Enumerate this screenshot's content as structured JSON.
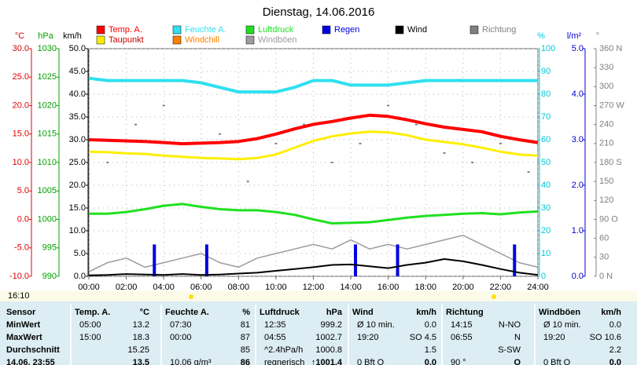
{
  "chart_data": {
    "type": "line",
    "title": "Dienstag, 14.06.2016",
    "axes": [
      {
        "label": "°C",
        "color": "#e00000",
        "lim": [
          -10,
          30
        ],
        "ticks": [
          {
            "value": 30,
            "label": "30.0"
          },
          {
            "value": 25,
            "label": "25.0"
          },
          {
            "value": 20,
            "label": "20.0"
          },
          {
            "value": 15,
            "label": "15.0"
          },
          {
            "value": 10,
            "label": "10.0"
          },
          {
            "value": 5,
            "label": "5.0"
          },
          {
            "value": 0,
            "label": "0.0"
          },
          {
            "value": -5,
            "label": "-5.0"
          },
          {
            "value": -10,
            "label": "-10.0"
          }
        ]
      },
      {
        "label": "hPa",
        "color": "#00a000",
        "lim": [
          990,
          1030
        ],
        "ticks": [
          1030,
          1025,
          1020,
          1015,
          1010,
          1005,
          1000,
          995,
          990
        ]
      },
      {
        "label": "km/h",
        "color": "#000000",
        "lim": [
          0,
          50
        ],
        "ticks": [
          {
            "value": 50,
            "label": "50.0"
          },
          {
            "value": 45,
            "label": "45.0"
          },
          {
            "value": 40,
            "label": "40.0"
          },
          {
            "value": 35,
            "label": "35.0"
          },
          {
            "value": 30,
            "label": "30.0"
          },
          {
            "value": 25,
            "label": "25.0"
          },
          {
            "value": 20,
            "label": "20.0"
          },
          {
            "value": 15,
            "label": "15.0"
          },
          {
            "value": 10,
            "label": "10.0"
          },
          {
            "value": 5,
            "label": "5.0"
          },
          {
            "value": 0,
            "label": "0.0"
          }
        ]
      },
      {
        "label": "%",
        "color": "#00c8d8",
        "lim": [
          0,
          100
        ],
        "ticks": [
          100,
          90,
          80,
          70,
          60,
          50,
          40,
          30,
          20,
          10,
          0
        ]
      },
      {
        "label": "l/m²",
        "color": "#0000d0",
        "lim": [
          0,
          5
        ],
        "ticks": [
          {
            "value": 5,
            "label": "5.0"
          },
          {
            "value": 4,
            "label": "4.0"
          },
          {
            "value": 3,
            "label": "3.0"
          },
          {
            "value": 2,
            "label": "2.0"
          },
          {
            "value": 1,
            "label": "1.0"
          },
          {
            "value": 0,
            "label": "0.0"
          }
        ]
      },
      {
        "label": "°",
        "color": "#808080",
        "lim": [
          0,
          360
        ],
        "ticks": [
          {
            "value": 360,
            "label": "360 N"
          },
          330,
          300,
          {
            "value": 270,
            "label": "270 W"
          },
          240,
          210,
          {
            "value": 180,
            "label": "180 S"
          },
          150,
          120,
          {
            "value": 90,
            "label": "90 O"
          },
          60,
          30,
          {
            "value": 0,
            "label": "0 N"
          }
        ]
      }
    ],
    "xlim": [
      0,
      24
    ],
    "xticks": [
      {
        "value": 0,
        "label": "00:00"
      },
      {
        "value": 2,
        "label": "02:00"
      },
      {
        "value": 4,
        "label": "04:00"
      },
      {
        "value": 6,
        "label": "06:00"
      },
      {
        "value": 8,
        "label": "08:00"
      },
      {
        "value": 10,
        "label": "10:00"
      },
      {
        "value": 12,
        "label": "12:00"
      },
      {
        "value": 14,
        "label": "14:00"
      },
      {
        "value": 16,
        "label": "16:00"
      },
      {
        "value": 18,
        "label": "18:00"
      },
      {
        "value": 20,
        "label": "20:00"
      },
      {
        "value": 22,
        "label": "22:00"
      },
      {
        "value": 24,
        "label": "24:00"
      }
    ],
    "x": [
      0,
      1,
      2,
      3,
      4,
      5,
      6,
      7,
      8,
      9,
      10,
      11,
      12,
      13,
      14,
      15,
      16,
      17,
      18,
      19,
      20,
      21,
      22,
      23,
      24
    ],
    "series": [
      {
        "name": "Temp. A.",
        "color": "#ff0000",
        "axis": 0,
        "kind": "line",
        "width": 4,
        "values": [
          14.0,
          13.9,
          13.8,
          13.7,
          13.5,
          13.3,
          13.4,
          13.5,
          13.7,
          14.2,
          15.0,
          15.9,
          16.7,
          17.2,
          17.8,
          18.3,
          18.1,
          17.5,
          16.8,
          16.2,
          15.8,
          15.4,
          14.6,
          14.0,
          13.5
        ]
      },
      {
        "name": "Feuchte A.",
        "color": "#30e0f0",
        "axis": 3,
        "kind": "line",
        "width": 4,
        "values": [
          87,
          86,
          86,
          86,
          86,
          86,
          85,
          83,
          81,
          81,
          81,
          83,
          86,
          86,
          84,
          84,
          84,
          85,
          86,
          86,
          86,
          86,
          86,
          86,
          86
        ]
      },
      {
        "name": "Luftdruck",
        "color": "#20e020",
        "axis": 1,
        "kind": "line",
        "width": 3,
        "values": [
          1001.0,
          1001.0,
          1001.3,
          1001.8,
          1002.4,
          1002.7,
          1002.2,
          1001.8,
          1001.6,
          1001.6,
          1001.3,
          1000.8,
          1000.0,
          999.3,
          999.4,
          999.5,
          999.9,
          1000.3,
          1000.6,
          1000.8,
          1001.0,
          1001.1,
          1000.9,
          1001.2,
          1001.4
        ]
      },
      {
        "name": "Regen",
        "color": "#0000e0",
        "axis": 4,
        "kind": "bar",
        "x": [
          3.5,
          6.3,
          14.25,
          16.5,
          22.75
        ],
        "values": [
          0.7,
          0.7,
          0.7,
          0.7,
          0.7
        ]
      },
      {
        "name": "Wind",
        "color": "#000000",
        "axis": 2,
        "kind": "line",
        "width": 2,
        "values": [
          0.2,
          0.3,
          0.5,
          0.4,
          0.3,
          0.5,
          0.3,
          0.4,
          0.6,
          0.8,
          1.2,
          1.6,
          2.0,
          2.5,
          2.6,
          2.2,
          1.8,
          2.5,
          3.0,
          3.8,
          3.3,
          2.5,
          1.6,
          0.8,
          0.3
        ]
      },
      {
        "name": "Richtung",
        "color": "#808080",
        "axis": 5,
        "kind": "dots",
        "x": [
          1,
          2.5,
          4,
          5.5,
          7,
          8.5,
          10,
          11.5,
          13,
          14.5,
          16,
          17.5,
          19,
          20.5,
          22,
          23.5
        ],
        "values": [
          180,
          240,
          270,
          210,
          225,
          150,
          210,
          240,
          180,
          210,
          270,
          240,
          195,
          180,
          210,
          165
        ]
      },
      {
        "name": "Taupunkt",
        "color": "#ffee00",
        "axis": 0,
        "kind": "line",
        "width": 3,
        "values": [
          11.9,
          11.8,
          11.6,
          11.5,
          11.2,
          11.0,
          10.8,
          10.7,
          10.6,
          10.8,
          11.4,
          12.6,
          13.8,
          14.6,
          15.1,
          15.4,
          15.3,
          14.8,
          14.0,
          13.6,
          13.2,
          12.6,
          11.9,
          11.4,
          11.2
        ]
      },
      {
        "name": "Windchill",
        "color": "#ff8000",
        "axis": 0,
        "kind": "none"
      },
      {
        "name": "Windböen",
        "color": "#a09aa0",
        "axis": 2,
        "kind": "line",
        "width": 1.5,
        "values": [
          1,
          3,
          4,
          2,
          3,
          4,
          5,
          3,
          2,
          4,
          5,
          6,
          7,
          6,
          8,
          6,
          7,
          6,
          7,
          8,
          9,
          7,
          5,
          3,
          2
        ]
      }
    ],
    "time_label": "16:10"
  },
  "table": {
    "columns": [
      [
        "Sensor"
      ],
      [
        "Temp. A.",
        "°C"
      ],
      [
        "Feuchte A.",
        "%"
      ],
      [
        "Luftdruck",
        "hPa"
      ],
      [
        "Wind",
        "km/h"
      ],
      [
        "Richtung"
      ],
      [
        "Windböen",
        "km/h"
      ]
    ],
    "rows": [
      [
        "MinWert",
        [
          "05:00",
          "13.2"
        ],
        [
          "07:30",
          "81"
        ],
        [
          "12:35",
          "999.2"
        ],
        [
          "Ø 10 min.",
          "0.0"
        ],
        [
          "14:15",
          "N-NO"
        ],
        [
          "Ø 10 min.",
          "0.0"
        ]
      ],
      [
        "MaxWert",
        [
          "15:00",
          "18.3"
        ],
        [
          "00:00",
          "87"
        ],
        [
          "04:55",
          "1002.7"
        ],
        [
          "19:20",
          "SO 4.5"
        ],
        [
          "06:55",
          "N"
        ],
        [
          "19:20",
          "SO 10.6"
        ]
      ],
      [
        "Durchschnitt",
        [
          null,
          "15.25"
        ],
        [
          null,
          "85"
        ],
        [
          "^2.4hPa/h",
          "1000.8"
        ],
        [
          null,
          "1.5"
        ],
        [
          null,
          "S-SW"
        ],
        [
          null,
          "2.2"
        ]
      ],
      [
        "14.06. 23:55",
        [
          null,
          "13.5"
        ],
        [
          "10.06 g/m³",
          "86"
        ],
        [
          "regnerisch",
          "↑1001.4"
        ],
        [
          "0 Bft O",
          "0.0"
        ],
        [
          "90 °",
          "O"
        ],
        [
          "0 Bft O",
          "0.0"
        ]
      ]
    ]
  }
}
